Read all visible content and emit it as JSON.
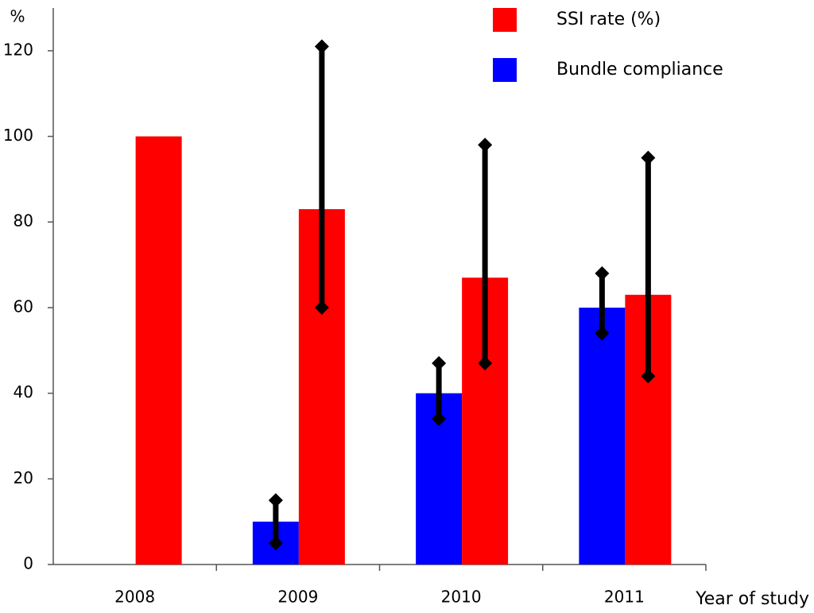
{
  "chart_data": {
    "type": "bar",
    "y_label": "%",
    "x_label": "Year of study",
    "categories": [
      "2008",
      "2009",
      "2010",
      "2011"
    ],
    "series": [
      {
        "name": "Bundle compliance",
        "color": "#0000ff",
        "values": [
          null,
          10,
          40,
          60
        ],
        "ci_low": [
          null,
          5,
          34,
          54
        ],
        "ci_high": [
          null,
          15,
          47,
          68
        ]
      },
      {
        "name": "SSI rate (%)",
        "color": "#ff0000",
        "values": [
          100,
          83,
          67,
          63
        ],
        "ci_low": [
          null,
          60,
          47,
          44
        ],
        "ci_high": [
          null,
          121,
          98,
          95
        ]
      }
    ],
    "ylim": [
      0,
      130
    ],
    "yticks": [
      0,
      20,
      40,
      60,
      80,
      100,
      120
    ],
    "grid": false,
    "legend": "top-right"
  }
}
